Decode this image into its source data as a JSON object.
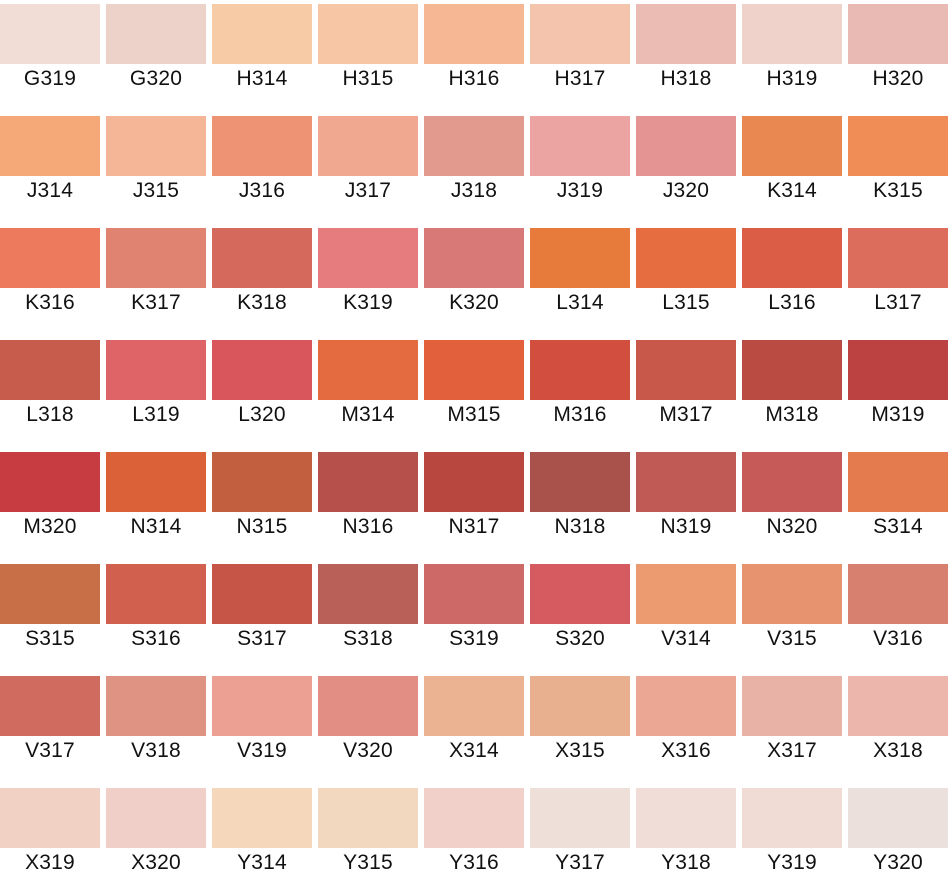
{
  "swatches": [
    [
      {
        "code": "G319",
        "color": "#f2dcd6"
      },
      {
        "code": "G320",
        "color": "#ecd2c8"
      },
      {
        "code": "H314",
        "color": "#f6cba5"
      },
      {
        "code": "H315",
        "color": "#f7c6a4"
      },
      {
        "code": "H316",
        "color": "#f6b795"
      },
      {
        "code": "H317",
        "color": "#f5c4ad"
      },
      {
        "code": "H318",
        "color": "#ebbcb3"
      },
      {
        "code": "H319",
        "color": "#efd3ca"
      },
      {
        "code": "H320",
        "color": "#e9bab4"
      }
    ],
    [
      {
        "code": "J314",
        "color": "#f6a978"
      },
      {
        "code": "J315",
        "color": "#f4b696"
      },
      {
        "code": "J316",
        "color": "#ee9373"
      },
      {
        "code": "J317",
        "color": "#f0a890"
      },
      {
        "code": "J318",
        "color": "#e19a8d"
      },
      {
        "code": "J319",
        "color": "#eca4a3"
      },
      {
        "code": "J320",
        "color": "#e49593"
      },
      {
        "code": "K314",
        "color": "#e98851"
      },
      {
        "code": "K315",
        "color": "#f08c56"
      }
    ],
    [
      {
        "code": "K316",
        "color": "#ee7a5e"
      },
      {
        "code": "K317",
        "color": "#e08371"
      },
      {
        "code": "K318",
        "color": "#d5695c"
      },
      {
        "code": "K319",
        "color": "#e67c7d"
      },
      {
        "code": "K320",
        "color": "#d97977"
      },
      {
        "code": "L314",
        "color": "#e67b3c"
      },
      {
        "code": "L315",
        "color": "#e56d40"
      },
      {
        "code": "L316",
        "color": "#db5d45"
      },
      {
        "code": "L317",
        "color": "#dc6d5d"
      }
    ],
    [
      {
        "code": "L318",
        "color": "#c75c4d"
      },
      {
        "code": "L319",
        "color": "#df6468"
      },
      {
        "code": "L320",
        "color": "#d9575c"
      },
      {
        "code": "M314",
        "color": "#e46b3f"
      },
      {
        "code": "M315",
        "color": "#e2603c"
      },
      {
        "code": "M316",
        "color": "#d24f40"
      },
      {
        "code": "M317",
        "color": "#c7584a"
      },
      {
        "code": "M318",
        "color": "#b94b43"
      },
      {
        "code": "M319",
        "color": "#bb4240"
      }
    ],
    [
      {
        "code": "M320",
        "color": "#c73c40"
      },
      {
        "code": "N314",
        "color": "#db6238"
      },
      {
        "code": "N315",
        "color": "#c25f3e"
      },
      {
        "code": "N316",
        "color": "#b6504a"
      },
      {
        "code": "N317",
        "color": "#b8473f"
      },
      {
        "code": "N318",
        "color": "#a9524c"
      },
      {
        "code": "N319",
        "color": "#bf5a55"
      },
      {
        "code": "N320",
        "color": "#c65a58"
      },
      {
        "code": "S314",
        "color": "#e47b4e"
      }
    ],
    [
      {
        "code": "S315",
        "color": "#c86f47"
      },
      {
        "code": "S316",
        "color": "#d2604f"
      },
      {
        "code": "S317",
        "color": "#c65547"
      },
      {
        "code": "S318",
        "color": "#b96058"
      },
      {
        "code": "S319",
        "color": "#cd6a67"
      },
      {
        "code": "S320",
        "color": "#d65b60"
      },
      {
        "code": "V314",
        "color": "#ec9b70"
      },
      {
        "code": "V315",
        "color": "#e89370"
      },
      {
        "code": "V316",
        "color": "#d7806f"
      }
    ],
    [
      {
        "code": "V317",
        "color": "#cf6b5f"
      },
      {
        "code": "V318",
        "color": "#de9383"
      },
      {
        "code": "V319",
        "color": "#eca094"
      },
      {
        "code": "V320",
        "color": "#e38e85"
      },
      {
        "code": "X314",
        "color": "#ecb392"
      },
      {
        "code": "X315",
        "color": "#e9b08f"
      },
      {
        "code": "X316",
        "color": "#eba794"
      },
      {
        "code": "X317",
        "color": "#e8b2a6"
      },
      {
        "code": "X318",
        "color": "#ecb6ad"
      }
    ],
    [
      {
        "code": "X319",
        "color": "#f1d1c4"
      },
      {
        "code": "X320",
        "color": "#efcfc8"
      },
      {
        "code": "Y314",
        "color": "#f5d8bb"
      },
      {
        "code": "Y315",
        "color": "#f3d8c0"
      },
      {
        "code": "Y316",
        "color": "#f0d0c8"
      },
      {
        "code": "Y317",
        "color": "#eee0d8"
      },
      {
        "code": "Y318",
        "color": "#f1ddd8"
      },
      {
        "code": "Y319",
        "color": "#f1dcd5"
      },
      {
        "code": "Y320",
        "color": "#ebe0dc"
      }
    ]
  ]
}
